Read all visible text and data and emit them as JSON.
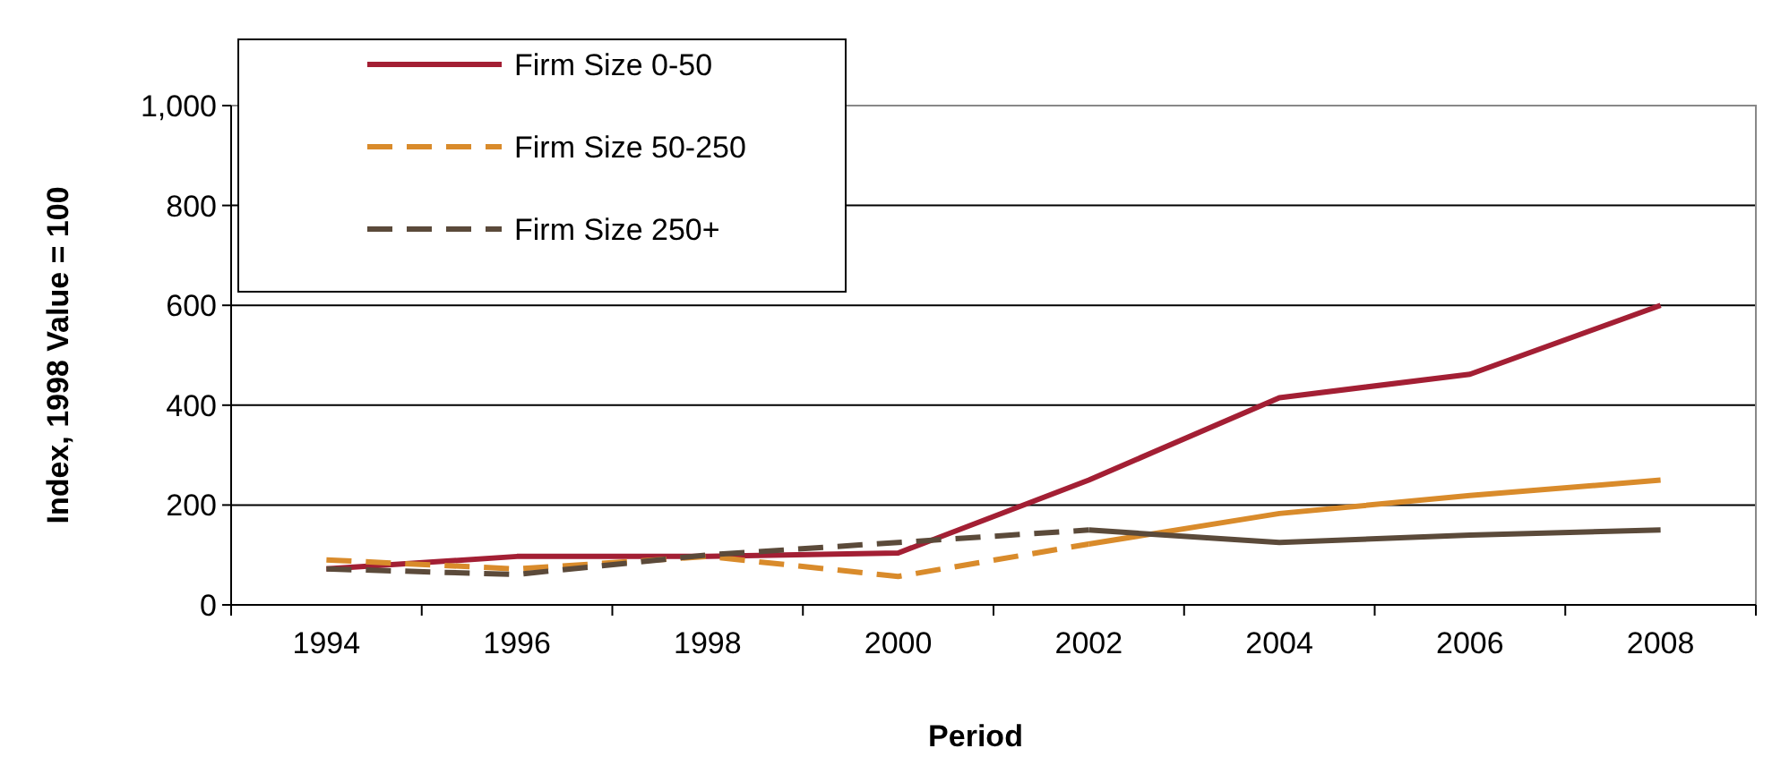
{
  "chart_data": {
    "type": "line",
    "xlabel": "Period",
    "ylabel": "Index, 1998 Value = 100",
    "categories": [
      "1994",
      "1996",
      "1998",
      "2000",
      "2002",
      "2004",
      "2006",
      "2008"
    ],
    "series": [
      {
        "name": "Firm Size 0-50",
        "color": "#a31f34",
        "line_style": "solid",
        "values": [
          72,
          97,
          97,
          104,
          250,
          415,
          462,
          600
        ]
      },
      {
        "name": "Firm Size 50-250",
        "color": "#d98b2b",
        "line_style": "dashed",
        "values": [
          90,
          72,
          97,
          57,
          122,
          null,
          null,
          null
        ]
      },
      {
        "color": "#d98b2b",
        "line_style": "solid",
        "values": [
          null,
          null,
          null,
          null,
          122,
          183,
          219,
          250
        ]
      },
      {
        "name": "Firm Size 250+",
        "color": "#5b4a3a",
        "line_style": "dashed",
        "values": [
          72,
          61,
          100,
          125,
          150,
          null,
          null,
          null
        ]
      },
      {
        "color": "#5b4a3a",
        "line_style": "solid",
        "values": [
          null,
          null,
          null,
          null,
          150,
          125,
          140,
          150
        ]
      }
    ],
    "ylim": [
      0,
      1000
    ],
    "yticks": [
      0,
      200,
      400,
      600,
      800,
      {
        "value": 1000,
        "label": "1,000"
      }
    ],
    "grid": "y",
    "legend": "top left"
  }
}
